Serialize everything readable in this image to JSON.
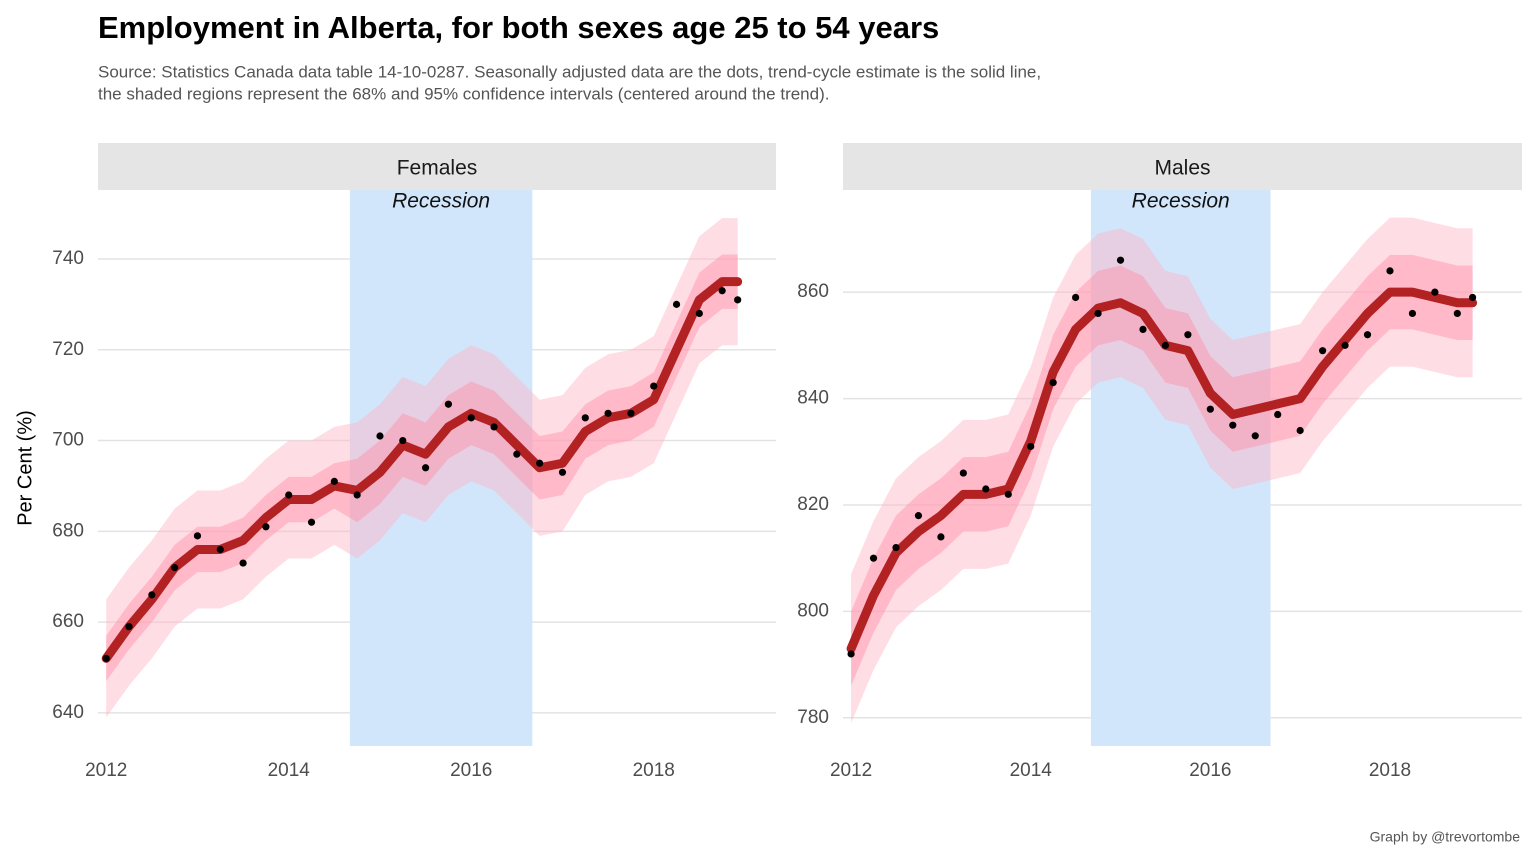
{
  "title": "Employment in Alberta, for both sexes age 25 to 54 years",
  "subtitle": [
    "Source: Statistics Canada data table 14-10-0287. Seasonally adjusted data are the dots, trend-cycle estimate is the solid line,",
    "the shaded regions represent the 68% and 95% confidence intervals (centered around the trend)."
  ],
  "y_label": "Per Cent (%)",
  "caption": "Graph by @trevortombe",
  "chart_data": [
    {
      "type": "line",
      "title": "Females",
      "x": [
        2012,
        2012.25,
        2012.5,
        2012.75,
        2013,
        2013.25,
        2013.5,
        2013.75,
        2014,
        2014.25,
        2014.5,
        2014.75,
        2015,
        2015.25,
        2015.5,
        2015.75,
        2016,
        2016.25,
        2016.5,
        2016.75,
        2017,
        2017.25,
        2017.5,
        2017.75,
        2018,
        2018.25,
        2018.5,
        2018.75,
        2018.92
      ],
      "trend": {
        "color": "#b22222",
        "values": [
          652,
          659,
          665,
          672,
          676,
          676,
          678,
          683,
          687,
          687,
          690,
          689,
          693,
          699,
          697,
          703,
          706,
          704,
          699,
          694,
          695,
          702,
          705,
          706,
          709,
          720,
          731,
          735,
          735
        ]
      },
      "points": {
        "color": "#000000",
        "values": [
          652,
          659,
          666,
          672,
          679,
          676,
          673,
          681,
          688,
          682,
          691,
          688,
          701,
          700,
          694,
          708,
          705,
          703,
          697,
          695,
          693,
          705,
          706,
          706,
          712,
          730,
          728,
          733,
          731
        ]
      },
      "band68": {
        "color": "#ff8fa8",
        "lower": [
          647,
          654,
          660,
          667,
          671,
          671,
          673,
          678,
          682,
          682,
          685,
          682,
          686,
          692,
          690,
          696,
          699,
          697,
          692,
          687,
          688,
          696,
          699,
          700,
          703,
          714,
          725,
          729,
          729
        ],
        "upper": [
          657,
          664,
          670,
          677,
          681,
          681,
          683,
          688,
          692,
          692,
          695,
          696,
          700,
          706,
          704,
          710,
          713,
          711,
          706,
          701,
          702,
          708,
          711,
          712,
          715,
          726,
          737,
          741,
          741
        ]
      },
      "band95": {
        "color": "#ffb3c4",
        "lower": [
          639,
          646,
          652,
          659,
          663,
          663,
          665,
          670,
          674,
          674,
          677,
          674,
          678,
          684,
          682,
          688,
          691,
          689,
          684,
          679,
          680,
          688,
          691,
          692,
          695,
          706,
          717,
          721,
          721
        ],
        "upper": [
          665,
          672,
          678,
          685,
          689,
          689,
          691,
          696,
          700,
          700,
          703,
          704,
          708,
          714,
          712,
          718,
          721,
          719,
          714,
          709,
          710,
          716,
          719,
          720,
          723,
          734,
          745,
          749,
          749
        ]
      },
      "recession": {
        "label": "Recession",
        "x": [
          2014.67,
          2016.67
        ],
        "color": "#d2e6fb"
      },
      "xlim": [
        2011.91,
        2019.34
      ],
      "xticks": [
        2012,
        2014,
        2016,
        2018
      ],
      "ylim": [
        632.7,
        755.2
      ],
      "yticks": [
        640,
        660,
        680,
        700,
        720,
        740
      ],
      "grid": true
    },
    {
      "type": "line",
      "title": "Males",
      "x": [
        2012,
        2012.25,
        2012.5,
        2012.75,
        2013,
        2013.25,
        2013.5,
        2013.75,
        2014,
        2014.25,
        2014.5,
        2014.75,
        2015,
        2015.25,
        2015.5,
        2015.75,
        2016,
        2016.25,
        2016.5,
        2016.75,
        2017,
        2017.25,
        2017.5,
        2017.75,
        2018,
        2018.25,
        2018.5,
        2018.75,
        2018.92
      ],
      "trend": {
        "color": "#b22222",
        "values": [
          793,
          803,
          811,
          815,
          818,
          822,
          822,
          823,
          832,
          845,
          853,
          857,
          858,
          856,
          850,
          849,
          841,
          837,
          838,
          839,
          840,
          846,
          851,
          856,
          860,
          860,
          859,
          858,
          858
        ]
      },
      "points": {
        "color": "#000000",
        "values": [
          792,
          810,
          812,
          818,
          814,
          826,
          823,
          822,
          831,
          843,
          859,
          856,
          866,
          853,
          850,
          852,
          838,
          835,
          833,
          837,
          834,
          849,
          850,
          852,
          864,
          856,
          860,
          856,
          859
        ]
      },
      "band68": {
        "color": "#ff8fa8",
        "lower": [
          786,
          796,
          804,
          808,
          811,
          815,
          815,
          816,
          825,
          838,
          846,
          850,
          851,
          849,
          843,
          842,
          834,
          830,
          831,
          832,
          833,
          839,
          844,
          849,
          853,
          853,
          852,
          851,
          851
        ],
        "upper": [
          800,
          810,
          818,
          822,
          825,
          829,
          829,
          830,
          839,
          852,
          860,
          864,
          865,
          863,
          857,
          856,
          848,
          844,
          845,
          846,
          847,
          853,
          858,
          863,
          867,
          867,
          866,
          865,
          865
        ]
      },
      "band95": {
        "color": "#ffb3c4",
        "lower": [
          779,
          789,
          797,
          801,
          804,
          808,
          808,
          809,
          818,
          831,
          839,
          843,
          844,
          842,
          836,
          835,
          827,
          823,
          824,
          825,
          826,
          832,
          837,
          842,
          846,
          846,
          845,
          844,
          844
        ],
        "upper": [
          807,
          817,
          825,
          829,
          832,
          836,
          836,
          837,
          846,
          859,
          867,
          871,
          872,
          870,
          864,
          863,
          855,
          851,
          852,
          853,
          854,
          860,
          865,
          870,
          874,
          874,
          873,
          872,
          872
        ]
      },
      "recession": {
        "label": "Recession",
        "x": [
          2014.67,
          2016.67
        ],
        "color": "#d2e6fb"
      },
      "xlim": [
        2011.91,
        2019.47
      ],
      "xticks": [
        2012,
        2014,
        2016,
        2018
      ],
      "ylim": [
        774.7,
        879.2
      ],
      "yticks": [
        780,
        800,
        820,
        840,
        860
      ],
      "grid": true
    }
  ]
}
